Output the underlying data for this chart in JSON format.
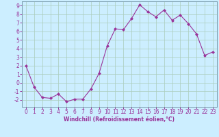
{
  "x": [
    0,
    1,
    2,
    3,
    4,
    5,
    6,
    7,
    8,
    9,
    10,
    11,
    12,
    13,
    14,
    15,
    16,
    17,
    18,
    19,
    20,
    21,
    22,
    23
  ],
  "y": [
    2,
    -0.5,
    -1.7,
    -1.8,
    -1.3,
    -2.2,
    -1.9,
    -1.9,
    -0.7,
    1.1,
    4.3,
    6.3,
    6.2,
    7.5,
    9.1,
    8.3,
    7.7,
    8.5,
    7.3,
    7.9,
    6.9,
    5.7,
    3.2,
    3.6
  ],
  "line_color": "#993399",
  "marker": "D",
  "markersize": 2.0,
  "linewidth": 0.8,
  "bg_color": "#cceeff",
  "grid_color": "#aaccbb",
  "xlabel": "Windchill (Refroidissement éolien,°C)",
  "xlabel_color": "#993399",
  "tick_color": "#993399",
  "ylim": [
    -2.8,
    9.5
  ],
  "xlim": [
    -0.5,
    23.5
  ],
  "yticks": [
    -2,
    -1,
    0,
    1,
    2,
    3,
    4,
    5,
    6,
    7,
    8,
    9
  ],
  "xticks": [
    0,
    1,
    2,
    3,
    4,
    5,
    6,
    7,
    8,
    9,
    10,
    11,
    12,
    13,
    14,
    15,
    16,
    17,
    18,
    19,
    20,
    21,
    22,
    23
  ],
  "spine_color": "#7799aa",
  "tick_labelsize": 5.5,
  "xlabel_fontsize": 5.5
}
